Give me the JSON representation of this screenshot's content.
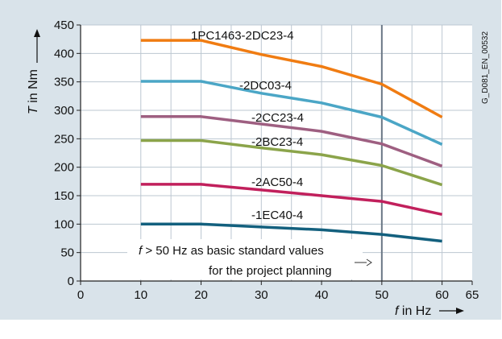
{
  "chart_data": {
    "type": "line",
    "xlabel_var": "f",
    "xlabel_unit": " in Hz",
    "ylabel_var": "T",
    "ylabel_unit": " in Nm",
    "xlim": [
      0,
      65
    ],
    "ylim": [
      0,
      450
    ],
    "x_ticks": [
      0,
      10,
      20,
      30,
      40,
      50,
      60,
      65
    ],
    "y_ticks": [
      0,
      50,
      100,
      150,
      200,
      250,
      300,
      350,
      400,
      450
    ],
    "x_grid": [
      10,
      15,
      20,
      25,
      30,
      35,
      40,
      45,
      50,
      55,
      60
    ],
    "grid": true,
    "reference_line_x": 50,
    "x": [
      10,
      20,
      30,
      40,
      50,
      60
    ],
    "series": [
      {
        "name": "1PC1463-2DC23-4",
        "color": "#f07c12",
        "values": [
          423,
          423,
          398,
          377,
          346,
          288
        ]
      },
      {
        "name": "-2DC03-4",
        "color": "#4ba6c6",
        "values": [
          351,
          351,
          330,
          313,
          288,
          240
        ]
      },
      {
        "name": "-2CC23-4",
        "color": "#9e5f81",
        "values": [
          289,
          289,
          276,
          263,
          241,
          202
        ]
      },
      {
        "name": "-2BC23-4",
        "color": "#8ba44a",
        "values": [
          247,
          247,
          234,
          222,
          203,
          169
        ]
      },
      {
        "name": "-2AC50-4",
        "color": "#c1205c",
        "values": [
          170,
          170,
          160,
          150,
          140,
          117
        ]
      },
      {
        "name": "-1EC40-4",
        "color": "#13607e",
        "values": [
          100,
          100,
          95,
          90,
          82,
          70
        ]
      }
    ],
    "annotation_line1_var": "f",
    "annotation_line1_rest": " > 50 Hz as basic standard values",
    "annotation_line2": "for the project planning",
    "side_label": "G_D081_EN_00532"
  }
}
